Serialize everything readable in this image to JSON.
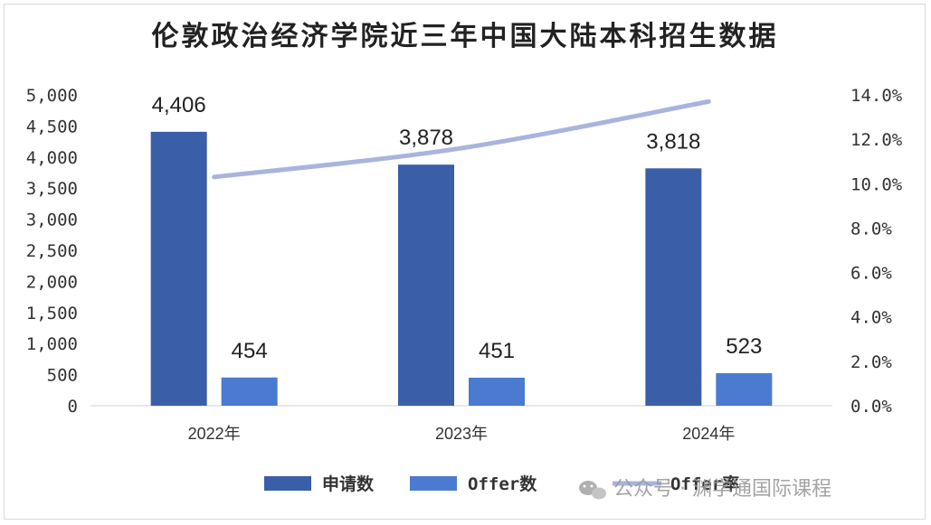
{
  "chart_data": {
    "type": "bar",
    "title": "伦敦政治经济学院近三年中国大陆本科招生数据",
    "categories": [
      "2022年",
      "2023年",
      "2024年"
    ],
    "series": [
      {
        "name": "申请数",
        "kind": "bar",
        "axis": "left",
        "color": "#3a5fa8",
        "values": [
          4406,
          3878,
          3818
        ],
        "labels": [
          "4,406",
          "3,878",
          "3,818"
        ]
      },
      {
        "name": "Offer数",
        "kind": "bar",
        "axis": "left",
        "color": "#4a7bd0",
        "values": [
          454,
          451,
          523
        ],
        "labels": [
          "454",
          "451",
          "523"
        ]
      },
      {
        "name": "Offer率",
        "kind": "line",
        "axis": "right",
        "color": "#a9b4dd",
        "values": [
          10.3,
          11.6,
          13.7
        ]
      }
    ],
    "y_left": {
      "min": 0,
      "max": 5000,
      "ticks": [
        "0",
        "500",
        "1,000",
        "1,500",
        "2,000",
        "2,500",
        "3,000",
        "3,500",
        "4,000",
        "4,500",
        "5,000"
      ]
    },
    "y_right": {
      "min": 0,
      "max": 14,
      "ticks": [
        "0.0%",
        "2.0%",
        "4.0%",
        "6.0%",
        "8.0%",
        "10.0%",
        "12.0%",
        "14.0%"
      ]
    },
    "legend_position": "bottom-right",
    "grid": false
  },
  "watermark": {
    "text": "公众号 · 渊学通国际课程",
    "icon": "wechat-icon"
  }
}
